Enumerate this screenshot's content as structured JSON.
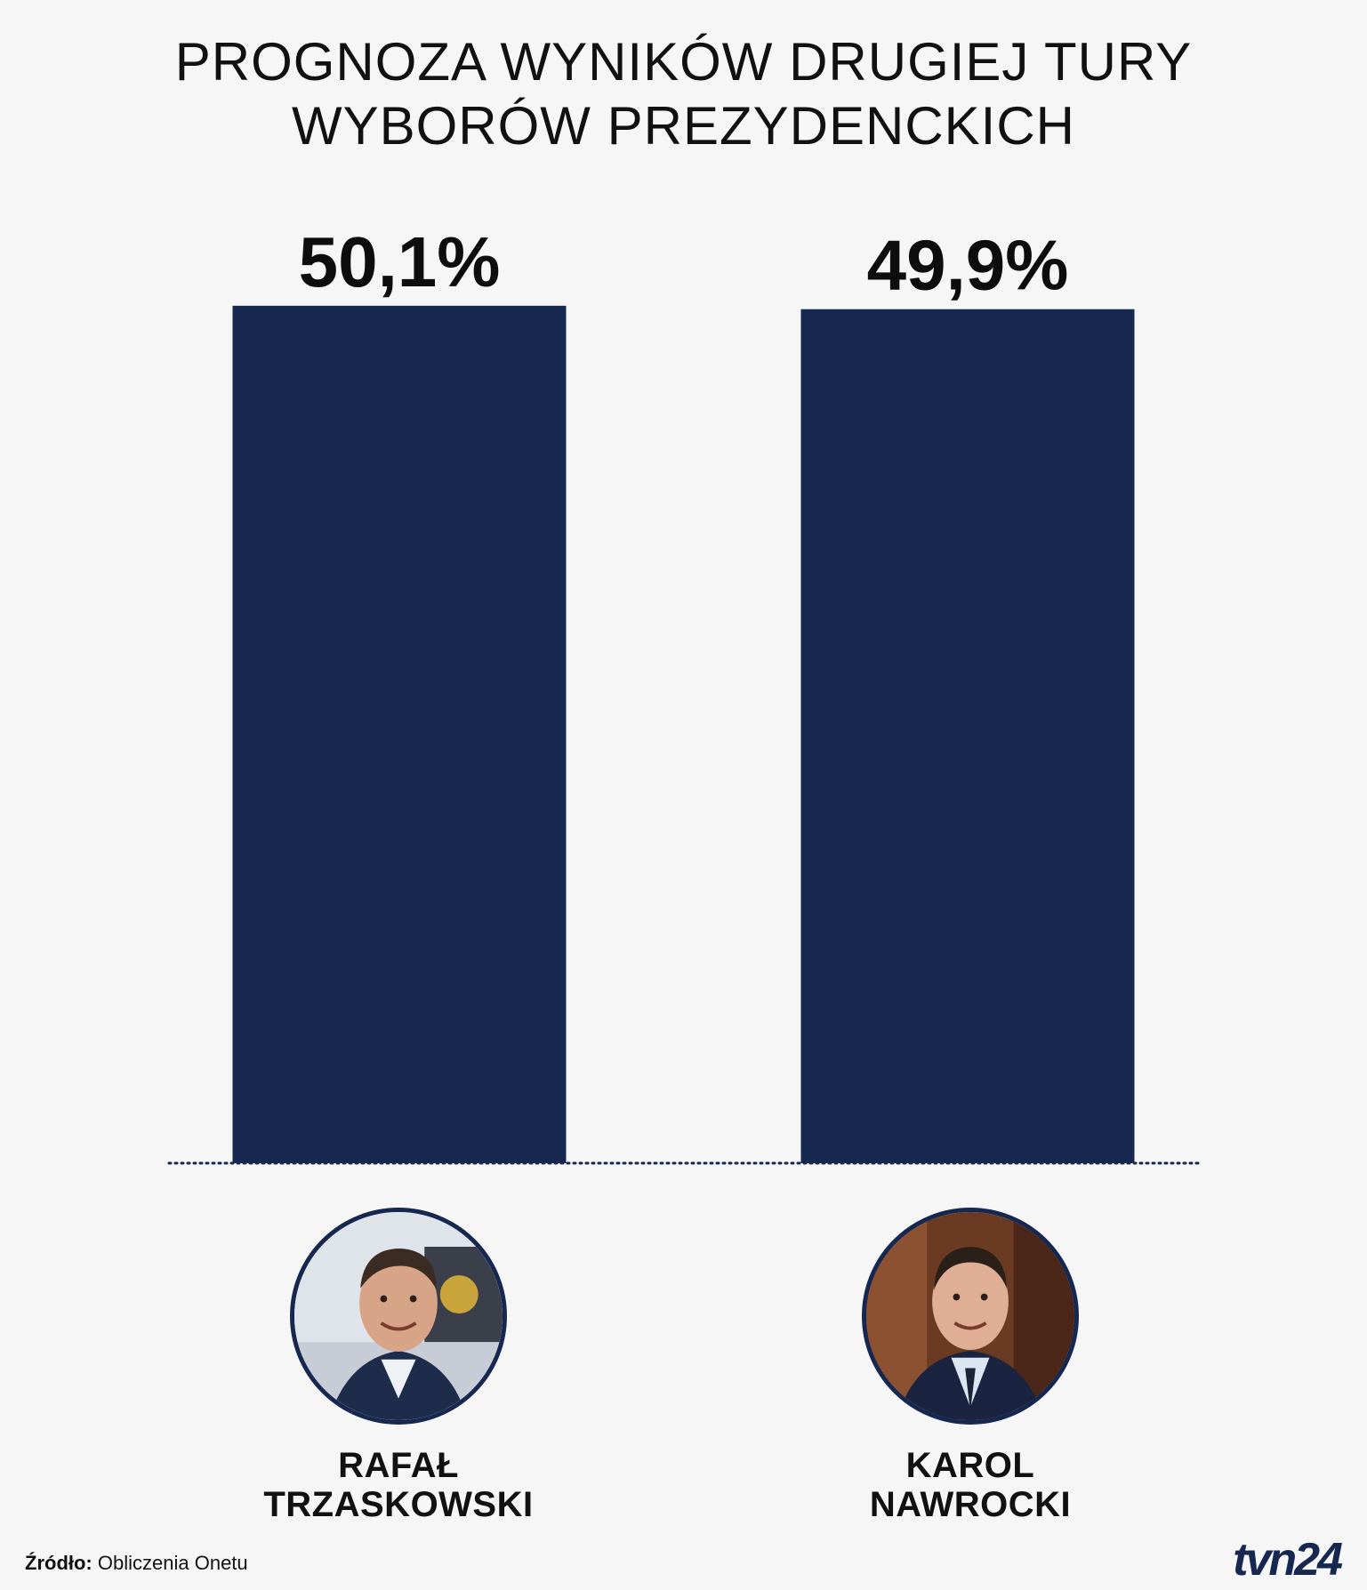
{
  "title": {
    "line1": "PROGNOZA WYNIKÓW DRUGIEJ TURY",
    "line2": "WYBORÓW PREZYDENCKICH"
  },
  "chart_data": {
    "type": "bar",
    "title": "PROGNOZA WYNIKÓW DRUGIEJ TURY WYBORÓW PREZYDENCKICH",
    "categories": [
      "RAFAŁ TRZASKOWSKI",
      "KAROL NAWROCKI"
    ],
    "values": [
      50.1,
      49.9
    ],
    "value_labels": [
      "50,1%",
      "49,9%"
    ],
    "unit": "%",
    "xlabel": "",
    "ylabel": "",
    "ylim": [
      0,
      50.3
    ],
    "grid": false,
    "legend": "none",
    "bar_color": "#16284f",
    "baseline_style": "dotted"
  },
  "candidates": [
    {
      "first_name": "RAFAŁ",
      "last_name": "TRZASKOWSKI"
    },
    {
      "first_name": "KAROL",
      "last_name": "NAWROCKI"
    }
  ],
  "source": {
    "label": "Źródło:",
    "text": "Obliczenia Onetu"
  },
  "logo": {
    "text": "tvn24"
  },
  "colors": {
    "background": "#f6f6f6",
    "bar": "#16284f",
    "text": "#111111"
  }
}
